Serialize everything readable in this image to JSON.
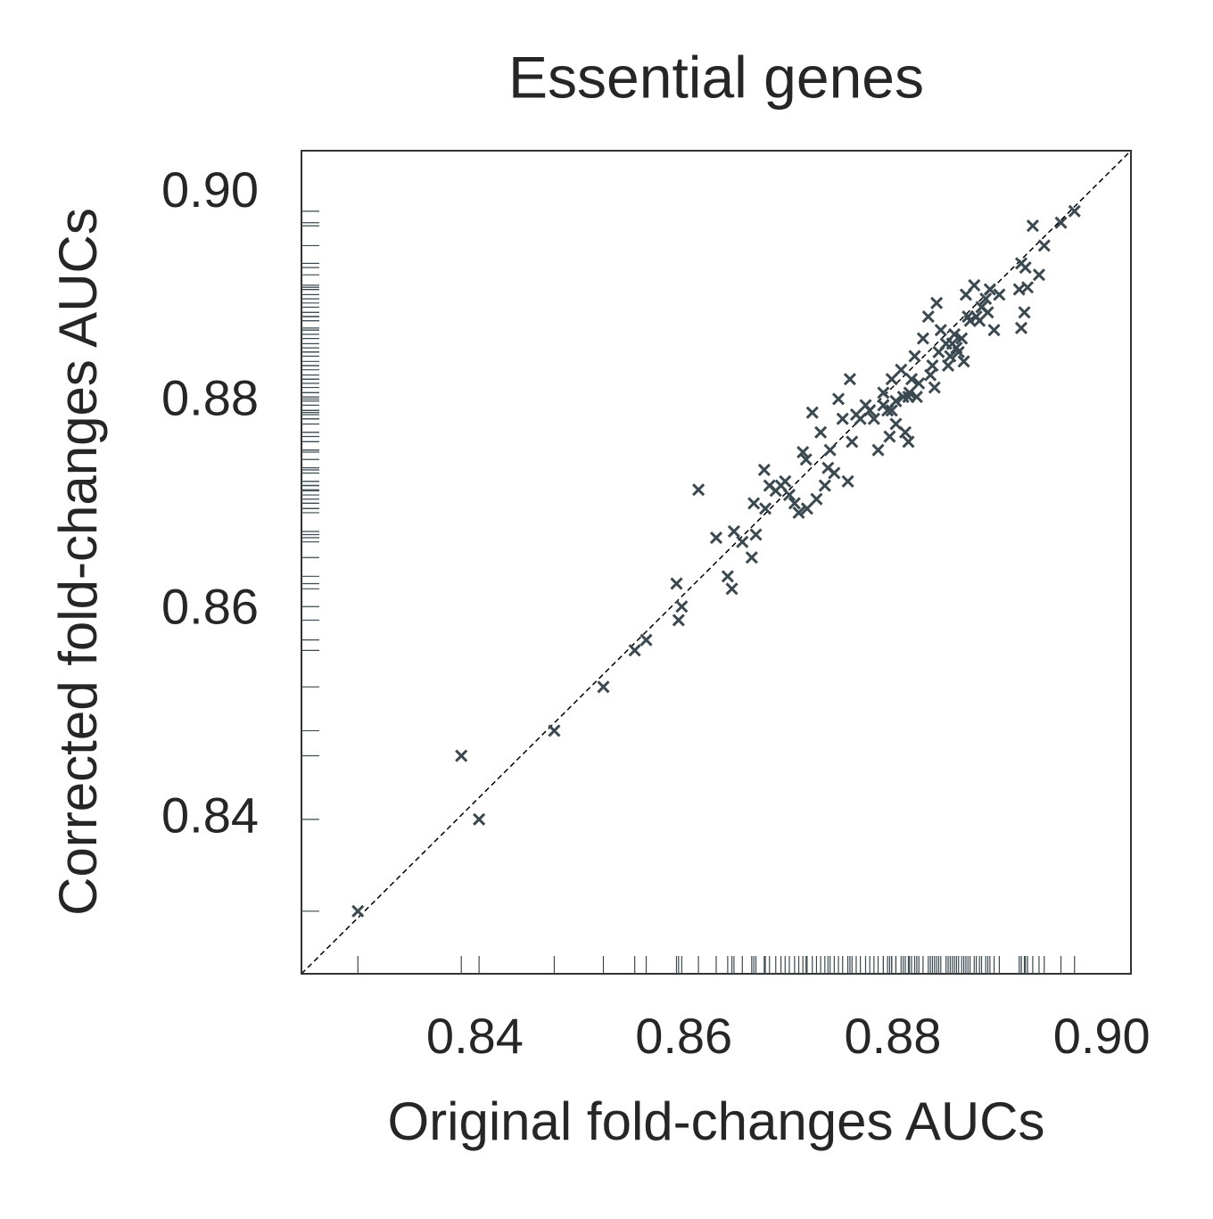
{
  "chart_data": {
    "type": "scatter",
    "title": "Essential genes",
    "x_label": "Original fold-changes AUCs",
    "y_label": "Corrected fold-changes AUCs",
    "xlim": [
      0.8234,
      0.9028
    ],
    "ylim": [
      0.8252,
      0.9041
    ],
    "xticks": [
      0.84,
      0.86,
      0.88,
      {
        "value": 0.9,
        "label": "0.90"
      }
    ],
    "yticks": [
      0.84,
      0.86,
      0.88,
      {
        "value": 0.9,
        "label": "0.90"
      }
    ],
    "color": "#3b4a50",
    "x": [
      0.8288,
      0.8387,
      0.8404,
      0.8476,
      0.8523,
      0.8553,
      0.8564,
      0.8593,
      0.8598,
      0.8595,
      0.8614,
      0.8631,
      0.8642,
      0.8646,
      0.8648,
      0.8656,
      0.8665,
      0.8669,
      0.8667,
      0.8677,
      0.8678,
      0.8682,
      0.8688,
      0.8693,
      0.8697,
      0.8701,
      0.8706,
      0.871,
      0.8714,
      0.8718,
      0.8723,
      0.8727,
      0.8731,
      0.8735,
      0.874,
      0.8744,
      0.8748,
      0.8752,
      0.8757,
      0.8759,
      0.8761,
      0.8765,
      0.8769,
      0.8774,
      0.8782,
      0.8786,
      0.8791,
      0.8795,
      0.8799,
      0.8803,
      0.8808,
      0.8812,
      0.8815,
      0.8816,
      0.8821,
      0.8825,
      0.8829,
      0.8834,
      0.8838,
      0.884,
      0.8842,
      0.8846,
      0.8851,
      0.8855,
      0.8859,
      0.8863,
      0.8868,
      0.887,
      0.8874,
      0.8878,
      0.888,
      0.8885,
      0.8889,
      0.8893,
      0.8897,
      0.8902,
      0.8921,
      0.8923,
      0.8926,
      0.8923,
      0.8927,
      0.8929,
      0.894,
      0.8945,
      0.8934,
      0.8961,
      0.8974,
      0.8778,
      0.8791,
      0.8799,
      0.8803,
      0.881,
      0.8818,
      0.8823,
      0.8836,
      0.8844,
      0.8853,
      0.8857,
      0.8861,
      0.8866,
      0.8872,
      0.8883,
      0.8891,
      0.8717,
      0.8738,
      0.8815,
      0.8797
    ],
    "y": [
      0.8312,
      0.8461,
      0.84,
      0.8485,
      0.8527,
      0.8562,
      0.8572,
      0.8626,
      0.8604,
      0.8591,
      0.8716,
      0.867,
      0.8633,
      0.8621,
      0.8676,
      0.8666,
      0.8651,
      0.8673,
      0.8703,
      0.8735,
      0.8698,
      0.872,
      0.8715,
      0.872,
      0.8724,
      0.8711,
      0.8703,
      0.8694,
      0.8752,
      0.8698,
      0.879,
      0.8707,
      0.8771,
      0.872,
      0.8754,
      0.8732,
      0.8803,
      0.8784,
      0.8724,
      0.8822,
      0.8762,
      0.8788,
      0.8784,
      0.8797,
      0.8784,
      0.8754,
      0.8809,
      0.8792,
      0.8822,
      0.8801,
      0.8831,
      0.8771,
      0.8762,
      0.8809,
      0.8844,
      0.8818,
      0.8861,
      0.8882,
      0.8835,
      0.8814,
      0.8895,
      0.8869,
      0.8856,
      0.8844,
      0.8865,
      0.8848,
      0.8839,
      0.8903,
      0.8878,
      0.8912,
      0.8882,
      0.8891,
      0.8899,
      0.8908,
      0.8869,
      0.8903,
      0.8908,
      0.8871,
      0.8886,
      0.8933,
      0.8929,
      0.891,
      0.8922,
      0.895,
      0.8969,
      0.8972,
      0.8983,
      0.8792,
      0.8797,
      0.8792,
      0.8779,
      0.8805,
      0.8822,
      0.8805,
      0.8826,
      0.8848,
      0.8835,
      0.8856,
      0.8852,
      0.8861,
      0.8882,
      0.8878,
      0.8886,
      0.8745,
      0.8737,
      0.8805,
      0.8767
    ]
  }
}
